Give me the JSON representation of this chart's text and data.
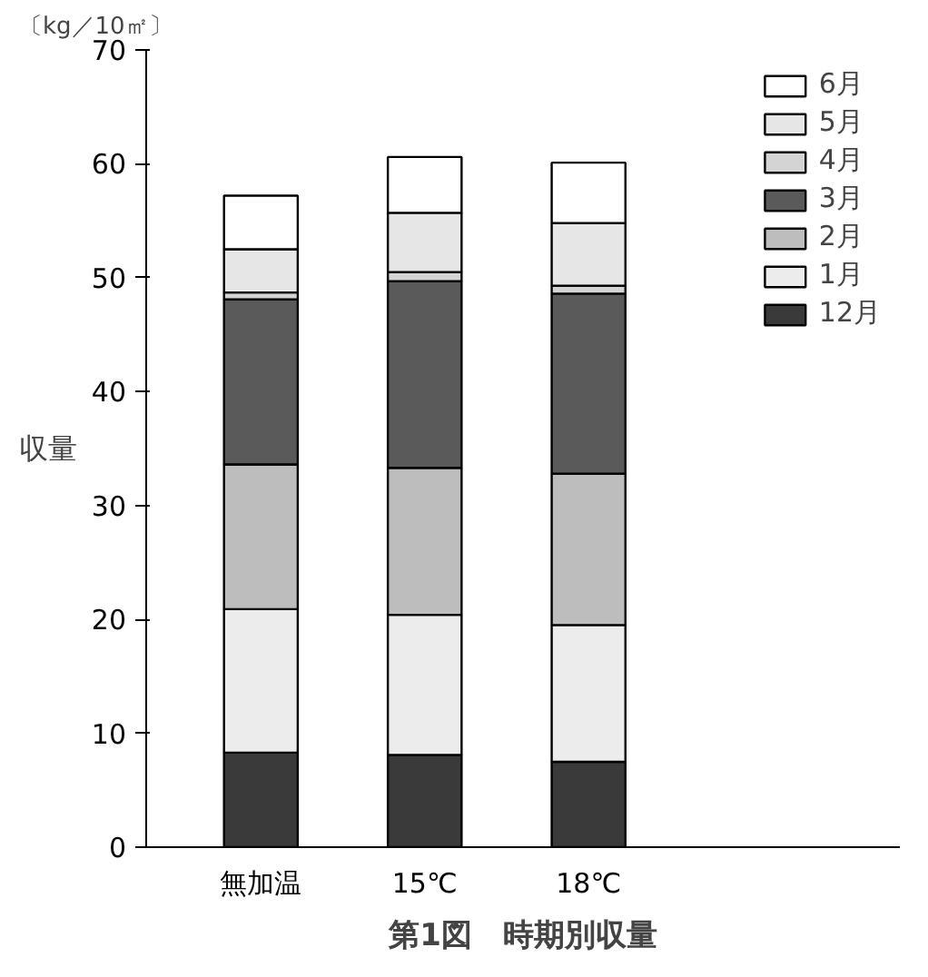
{
  "chart_data": {
    "type": "bar",
    "stacked": true,
    "title": "第1図　時期別収量",
    "ylabel": "収量",
    "annotations": [
      "〔kg／10㎡〕"
    ],
    "categories": [
      "無加温",
      "15℃",
      "18℃"
    ],
    "series": [
      {
        "name": "12月",
        "color": "#3a3a3a",
        "values": [
          8.3,
          8.1,
          7.5
        ]
      },
      {
        "name": "1月",
        "color": "#ececec",
        "values": [
          12.6,
          12.3,
          12.0
        ]
      },
      {
        "name": "2月",
        "color": "#bdbdbd",
        "values": [
          12.7,
          12.9,
          13.3
        ]
      },
      {
        "name": "3月",
        "color": "#5a5a5a",
        "values": [
          14.5,
          16.4,
          15.8
        ]
      },
      {
        "name": "4月",
        "color": "#d4d4d4",
        "values": [
          0.6,
          0.8,
          0.7
        ]
      },
      {
        "name": "5月",
        "color": "#e6e6e6",
        "values": [
          3.8,
          5.2,
          5.5
        ]
      },
      {
        "name": "6月",
        "color": "#ffffff",
        "values": [
          4.7,
          4.9,
          5.3
        ]
      }
    ],
    "ylim": [
      0,
      70
    ],
    "yticks": [
      0,
      10,
      20,
      30,
      40,
      50,
      60,
      70
    ],
    "grid": false,
    "legend": "top right"
  }
}
